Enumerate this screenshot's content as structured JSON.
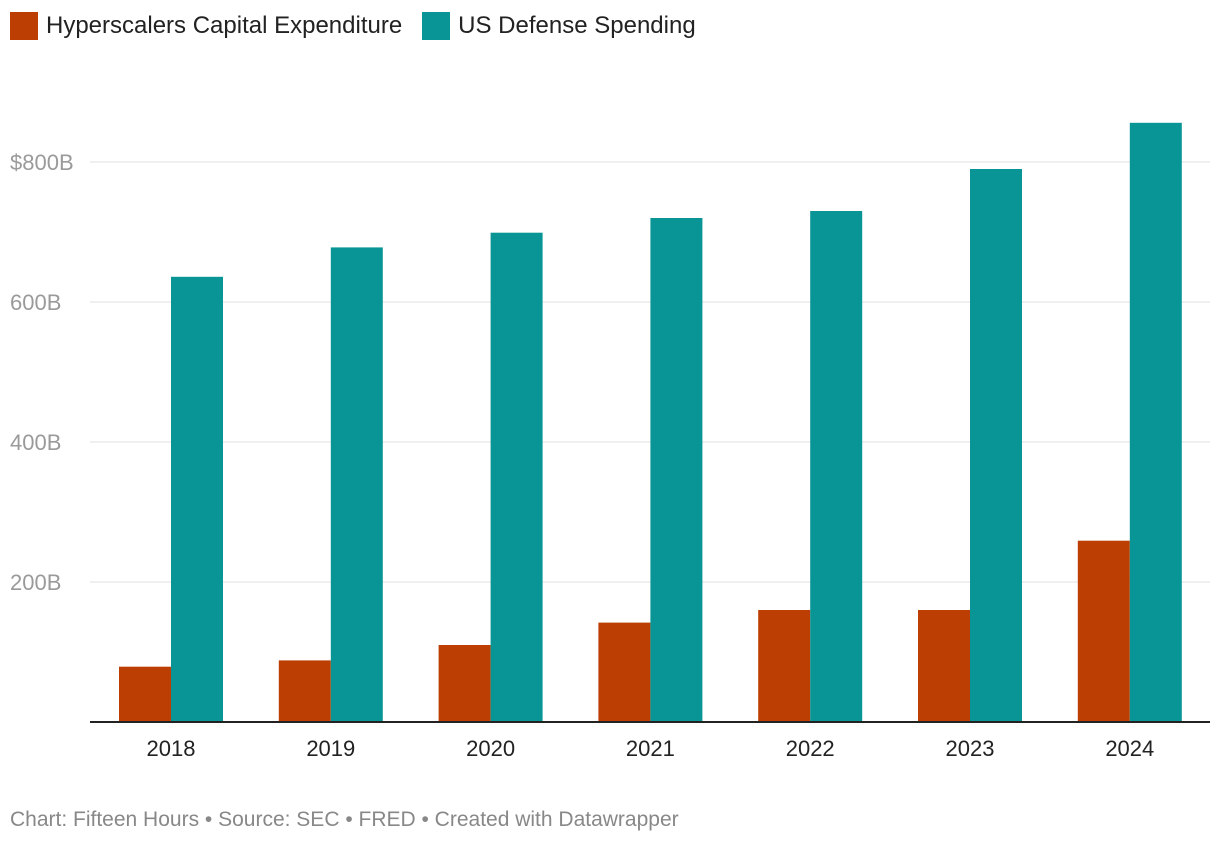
{
  "legend": {
    "items": [
      {
        "label": "Hyperscalers Capital Expenditure",
        "color": "#bc3e03"
      },
      {
        "label": "US Defense Spending",
        "color": "#099595"
      }
    ]
  },
  "footer": {
    "text": "Chart: Fifteen Hours • Source: SEC • FRED • Created with Datawrapper"
  },
  "chart_data": {
    "type": "bar",
    "title": "",
    "xlabel": "",
    "ylabel": "",
    "categories": [
      "2018",
      "2019",
      "2020",
      "2021",
      "2022",
      "2023",
      "2024"
    ],
    "series": [
      {
        "name": "Hyperscalers Capital Expenditure",
        "color": "#bc3e03",
        "values": [
          79,
          88,
          110,
          142,
          160,
          160,
          259
        ]
      },
      {
        "name": "US Defense Spending",
        "color": "#099595",
        "values": [
          636,
          678,
          699,
          720,
          730,
          790,
          856
        ]
      }
    ],
    "ylim": [
      0,
      900
    ],
    "yticks": [
      {
        "value": 200,
        "label": "200B"
      },
      {
        "value": 400,
        "label": "400B"
      },
      {
        "value": 600,
        "label": "600B"
      },
      {
        "value": 800,
        "label": "$800B"
      }
    ],
    "grid": true,
    "legend_position": "top-left"
  }
}
